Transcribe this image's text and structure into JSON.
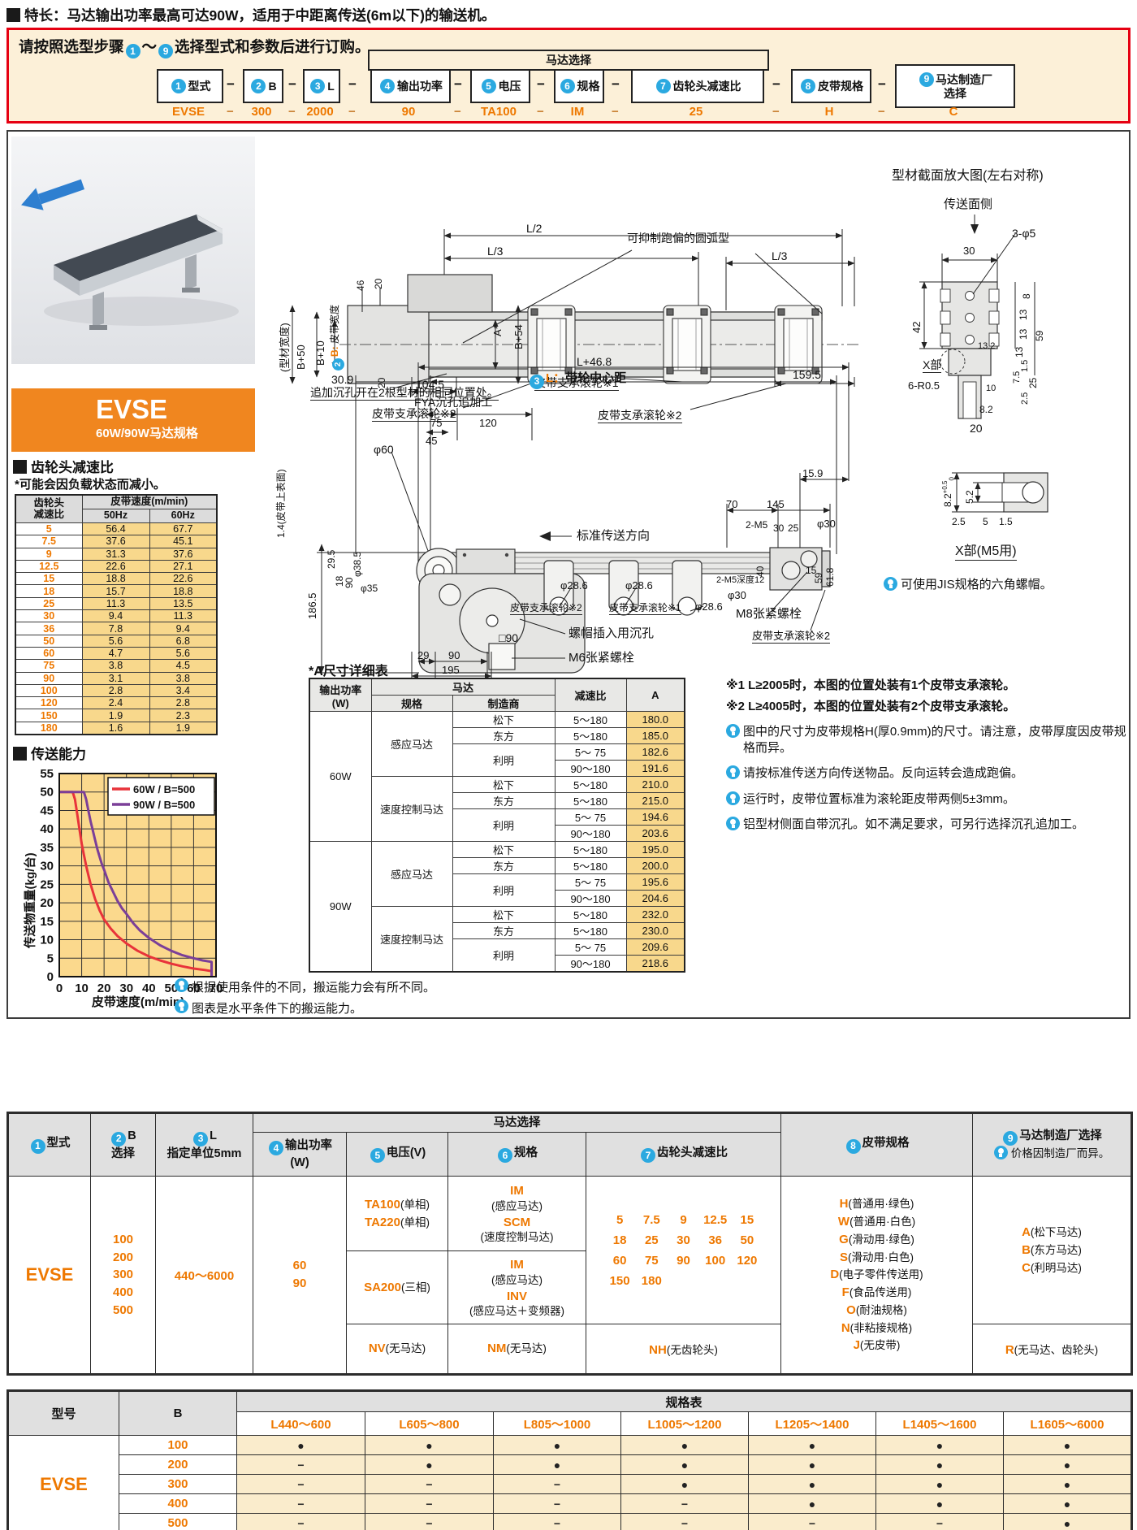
{
  "feature": "特长：马达输出功率最高可达90W，适用于中距离传送(6m以下)的输送机。",
  "order": {
    "title_pre": "请按照选型步骤",
    "tilde": "～",
    "title_post": "选择型式和参数后进行订购。",
    "dash": "−",
    "motor_group": "马达选择",
    "steps": [
      {
        "num": "1",
        "label": "型式",
        "code": "EVSE"
      },
      {
        "num": "2",
        "label": "B",
        "code": "300"
      },
      {
        "num": "3",
        "label": "L",
        "code": "2000"
      },
      {
        "num": "4",
        "label": "输出功率",
        "code": "90"
      },
      {
        "num": "5",
        "label": "电压",
        "code": "TA100"
      },
      {
        "num": "6",
        "label": "规格",
        "code": "IM"
      },
      {
        "num": "7",
        "label": "齿轮头减速比",
        "code": "25"
      },
      {
        "num": "8",
        "label": "皮带规格",
        "code": "H"
      },
      {
        "num": "9",
        "label": "马达制造厂",
        "label2": "选择",
        "code": "C"
      }
    ]
  },
  "product": {
    "name": "EVSE",
    "sub": "60W/90W马达规格"
  },
  "gear": {
    "title": "齿轮头减速比",
    "note": "*可能会因负载状态而减小。",
    "h_ratio1": "齿轮头",
    "h_ratio2": "减速比",
    "h_speed": "皮带速度(m/min)",
    "h_50": "50Hz",
    "h_60": "60Hz",
    "rows": [
      [
        "5",
        "56.4",
        "67.7"
      ],
      [
        "7.5",
        "37.6",
        "45.1"
      ],
      [
        "9",
        "31.3",
        "37.6"
      ],
      [
        "12.5",
        "22.6",
        "27.1"
      ],
      [
        "15",
        "18.8",
        "22.6"
      ],
      [
        "18",
        "15.7",
        "18.8"
      ],
      [
        "25",
        "11.3",
        "13.5"
      ],
      [
        "30",
        "9.4",
        "11.3"
      ],
      [
        "36",
        "7.8",
        "9.4"
      ],
      [
        "50",
        "5.6",
        "6.8"
      ],
      [
        "60",
        "4.7",
        "5.6"
      ],
      [
        "75",
        "3.8",
        "4.5"
      ],
      [
        "90",
        "3.1",
        "3.8"
      ],
      [
        "100",
        "2.8",
        "3.4"
      ],
      [
        "120",
        "2.4",
        "2.8"
      ],
      [
        "150",
        "1.9",
        "2.3"
      ],
      [
        "180",
        "1.6",
        "1.9"
      ]
    ]
  },
  "chart_data": {
    "type": "line",
    "title": "传送能力",
    "xlabel": "皮带速度(m/min)",
    "ylabel": "传送物重量(kg/台)",
    "xlim": [
      0,
      70
    ],
    "ylim": [
      0,
      55
    ],
    "xticks": [
      0,
      10,
      20,
      30,
      40,
      50,
      60,
      70
    ],
    "yticks": [
      0,
      5,
      10,
      15,
      20,
      25,
      30,
      35,
      40,
      45,
      50,
      55
    ],
    "grid": true,
    "legend_position": "top-right",
    "plot_bg": "#fbd98d",
    "series": [
      {
        "name": "60W / B=500",
        "color": "#e8333a",
        "points": [
          [
            0,
            50
          ],
          [
            6,
            50
          ],
          [
            7,
            48
          ],
          [
            8,
            44
          ],
          [
            9,
            40
          ],
          [
            10,
            36
          ],
          [
            11,
            33
          ],
          [
            12,
            30
          ],
          [
            13,
            27.5
          ],
          [
            14,
            25
          ],
          [
            16,
            21
          ],
          [
            18,
            18
          ],
          [
            20,
            15.5
          ],
          [
            23,
            13
          ],
          [
            26,
            11
          ],
          [
            30,
            9
          ],
          [
            35,
            7
          ],
          [
            40,
            5.5
          ],
          [
            45,
            4.4
          ],
          [
            50,
            3.5
          ],
          [
            55,
            2.8
          ],
          [
            60,
            2.2
          ],
          [
            65,
            1.8
          ],
          [
            68,
            1.5
          ],
          [
            68,
            0
          ]
        ]
      },
      {
        "name": "90W / B=500",
        "color": "#7b3f98",
        "points": [
          [
            0,
            50
          ],
          [
            11,
            50
          ],
          [
            12,
            48
          ],
          [
            13,
            45
          ],
          [
            14,
            42
          ],
          [
            15,
            39.5
          ],
          [
            16,
            37
          ],
          [
            17,
            34.5
          ],
          [
            18,
            32.5
          ],
          [
            19,
            30.5
          ],
          [
            20,
            29
          ],
          [
            22,
            25.5
          ],
          [
            24,
            23
          ],
          [
            26,
            20.5
          ],
          [
            28,
            18.5
          ],
          [
            30,
            17
          ],
          [
            33,
            14.5
          ],
          [
            36,
            12.5
          ],
          [
            40,
            10.5
          ],
          [
            45,
            8.5
          ],
          [
            50,
            7
          ],
          [
            55,
            5.8
          ],
          [
            60,
            5
          ],
          [
            64,
            4.4
          ],
          [
            68,
            4
          ],
          [
            68,
            0
          ]
        ]
      }
    ],
    "notes": [
      "根据使用条件的不同，搬运能力会有所不同。",
      "图表是水平条件下的搬运能力。"
    ]
  },
  "plan": {
    "l2": "L/2",
    "l3": "L/3",
    "l3r": "L/3",
    "arc": "可抑制跑偏的圆弧型",
    "w46": "46",
    "w20": "20",
    "w20b": "20",
    "profile_w": "(型材宽度)",
    "b50": "B+50",
    "b10": "B+10",
    "belt_b": "B:",
    "belt_w": "皮带宽度",
    "astar": "A*",
    "b54": "B+54",
    "d1045": "104.5",
    "d1595": "159.5",
    "counterbore": "追加沉孔开在2根型材的相同位置处。",
    "roller2a": "皮带支承滚轮※2",
    "roller1": "皮带支承滚轮※1",
    "roller2b": "皮带支承滚轮※2"
  },
  "side": {
    "l468": "L+46.8",
    "lmark": "L：",
    "lname": "带轮中心距",
    "d309": "30.9",
    "fya": "FYA沉孔追加工",
    "d75": "75",
    "d120": "120",
    "d45": "45",
    "dia60": "φ60",
    "belt_top": "1.4(皮带上表面)",
    "dir": "标准传送方向",
    "d1865": "186.5",
    "d295": "29.5",
    "dia385": "φ38.5",
    "d18": "18",
    "d90v": "90",
    "dia35": "φ35",
    "d29": "29",
    "d90": "90",
    "d195": "195",
    "sq90": "□90",
    "nut": "螺帽插入用沉孔",
    "m6": "M6张紧螺栓",
    "dia286": "φ28.6",
    "roller2c": "皮带支承滚轮※2",
    "roller1b": "皮带支承滚轮※1",
    "d159": "15.9",
    "d70": "70",
    "d145": "145",
    "m5": "2-M5",
    "d30": "30",
    "d25": "25",
    "dia30": "φ30",
    "d40": "40",
    "d59": "59",
    "d618": "61.8",
    "d15": "15",
    "m5d": "2-M5深度12",
    "m8": "M8张紧螺栓",
    "roller2d": "皮带支承滚轮※2"
  },
  "section": {
    "title": "型材截面放大图(左右对称)",
    "face": "传送面侧",
    "d3phi5": "3-φ5",
    "d30": "30",
    "d42": "42",
    "d8": "8",
    "d13": "13",
    "d59": "59",
    "d15": "1.5",
    "d25": "25",
    "d75": "7.5",
    "d132": "13.2",
    "d25b": "2.5",
    "d10": "10",
    "d82": "8.2",
    "d20": "20",
    "x": "X部",
    "r05": "6-R0.5"
  },
  "xdetail": {
    "d82": "8.2",
    "tol": "+0.5",
    "tol2": "0",
    "d52": "5.2",
    "d25": "2.5",
    "d5": "5",
    "d15": "1.5",
    "title": "X部(M5用)",
    "note": "可使用JIS规格的六角螺帽。"
  },
  "a_table": {
    "title": "*A尺寸详细表",
    "h_power": "输出功率",
    "h_power2": "(W)",
    "h_motor": "马达",
    "h_spec": "规格",
    "h_maker": "制造商",
    "h_ratio": "减速比",
    "h_a": "A",
    "groups": [
      {
        "power": "60W",
        "blocks": [
          {
            "spec": "感应马达",
            "rows": [
              [
                "松下",
                "5～180",
                "180.0"
              ],
              [
                "东方",
                "5～180",
                "185.0"
              ],
              [
                "利明",
                "5～ 75",
                "182.6"
              ],
              [
                "",
                "90～180",
                "191.6"
              ]
            ]
          },
          {
            "spec": "速度控制马达",
            "rows": [
              [
                "松下",
                "5～180",
                "210.0"
              ],
              [
                "东方",
                "5～180",
                "215.0"
              ],
              [
                "利明",
                "5～ 75",
                "194.6"
              ],
              [
                "",
                "90～180",
                "203.6"
              ]
            ]
          }
        ]
      },
      {
        "power": "90W",
        "blocks": [
          {
            "spec": "感应马达",
            "rows": [
              [
                "松下",
                "5～180",
                "195.0"
              ],
              [
                "东方",
                "5～180",
                "200.0"
              ],
              [
                "利明",
                "5～ 75",
                "195.6"
              ],
              [
                "",
                "90～180",
                "204.6"
              ]
            ]
          },
          {
            "spec": "速度控制马达",
            "rows": [
              [
                "松下",
                "5～180",
                "232.0"
              ],
              [
                "东方",
                "5～180",
                "230.0"
              ],
              [
                "利明",
                "5～ 75",
                "209.6"
              ],
              [
                "",
                "90～180",
                "218.6"
              ]
            ]
          }
        ]
      }
    ]
  },
  "notes": {
    "ref1": "※1 L≥2005时，本图的位置处装有1个皮带支承滚轮。",
    "ref2": "※2 L≥4005时，本图的位置处装有2个皮带支承滚轮。",
    "hints": [
      "图中的尺寸为皮带规格H(厚0.9mm)的尺寸。请注意，皮带厚度因皮带规格而异。",
      "请按标准传送方向传送物品。反向运转会造成跑偏。",
      "运行时，皮带位置标准为滚轮距皮带两侧5±3mm。",
      "铝型材侧面自带沉孔。如不满足要求，可另行选择沉孔追加工。"
    ]
  },
  "selection": {
    "h": {
      "c1": "型式",
      "c2a": "B",
      "c2b": "选择",
      "c3a": "L",
      "c3b": "指定单位5mm",
      "motor": "马达选择",
      "c4a": "输出功率",
      "c4b": "(W)",
      "c5": "电压(V)",
      "c6": "规格",
      "c7": "齿轮头减速比",
      "c8": "皮带规格",
      "c9": "马达制造厂选择",
      "c9note": "价格因制造厂而异。"
    },
    "model": "EVSE",
    "b_values": [
      "100",
      "200",
      "300",
      "400",
      "500"
    ],
    "l_range": "440～6000",
    "power_values": [
      "60",
      "90"
    ],
    "voltage_rows": [
      [
        {
          "code": "TA100",
          "desc": "(单相)"
        },
        {
          "code": "TA220",
          "desc": "(单相)"
        }
      ],
      [
        {
          "code": "SA200",
          "desc": "(三相)"
        }
      ],
      [
        {
          "code": "NV",
          "desc": "(无马达)"
        }
      ]
    ],
    "spec_rows": [
      [
        {
          "code": "IM",
          "desc": "(感应马达)"
        },
        {
          "code": "SCM",
          "desc": "(速度控制马达)"
        }
      ],
      [
        {
          "code": "IM",
          "desc": "(感应马达)"
        },
        {
          "code": "INV",
          "desc": "(感应马达＋变频器)"
        }
      ],
      [
        {
          "code": "NM",
          "desc": "(无马达)"
        }
      ]
    ],
    "ratios": [
      [
        "5",
        "7.5",
        "9",
        "12.5",
        "15"
      ],
      [
        "18",
        "25",
        "30",
        "36",
        "50"
      ],
      [
        "60",
        "75",
        "90",
        "100",
        "120"
      ],
      [
        "150",
        "180"
      ]
    ],
    "ratio_none": {
      "code": "NH",
      "desc": "(无齿轮头)"
    },
    "belts": [
      {
        "code": "H",
        "desc": "(普通用·绿色)"
      },
      {
        "code": "W",
        "desc": "(普通用·白色)"
      },
      {
        "code": "G",
        "desc": "(滑动用·绿色)"
      },
      {
        "code": "S",
        "desc": "(滑动用·白色)"
      },
      {
        "code": "D",
        "desc": "(电子零件传送用)"
      },
      {
        "code": "F",
        "desc": "(食品传送用)"
      },
      {
        "code": "O",
        "desc": "(耐油规格)"
      },
      {
        "code": "N",
        "desc": "(非粘接规格)"
      },
      {
        "code": "J",
        "desc": "(无皮带)"
      }
    ],
    "makers": [
      {
        "code": "A",
        "desc": "(松下马达)"
      },
      {
        "code": "B",
        "desc": "(东方马达)"
      },
      {
        "code": "C",
        "desc": "(利明马达)"
      }
    ],
    "maker_none": {
      "code": "R",
      "desc": "(无马达、齿轮头)"
    }
  },
  "matrix": {
    "title": "规格表",
    "col_model": "型号",
    "col_b": "B",
    "l_headers": [
      "L440～600",
      "L605～800",
      "L805～1000",
      "L1005～1200",
      "L1205～1400",
      "L1405～1600",
      "L1605～6000"
    ],
    "model": "EVSE",
    "dot": "●",
    "dash": "−",
    "rows": [
      {
        "b": "100",
        "cells": [
          1,
          1,
          1,
          1,
          1,
          1,
          1
        ]
      },
      {
        "b": "200",
        "cells": [
          0,
          1,
          1,
          1,
          1,
          1,
          1
        ]
      },
      {
        "b": "300",
        "cells": [
          0,
          0,
          0,
          1,
          1,
          1,
          1
        ]
      },
      {
        "b": "400",
        "cells": [
          0,
          0,
          0,
          0,
          1,
          1,
          1
        ]
      },
      {
        "b": "500",
        "cells": [
          0,
          0,
          0,
          0,
          0,
          0,
          1
        ]
      }
    ]
  }
}
